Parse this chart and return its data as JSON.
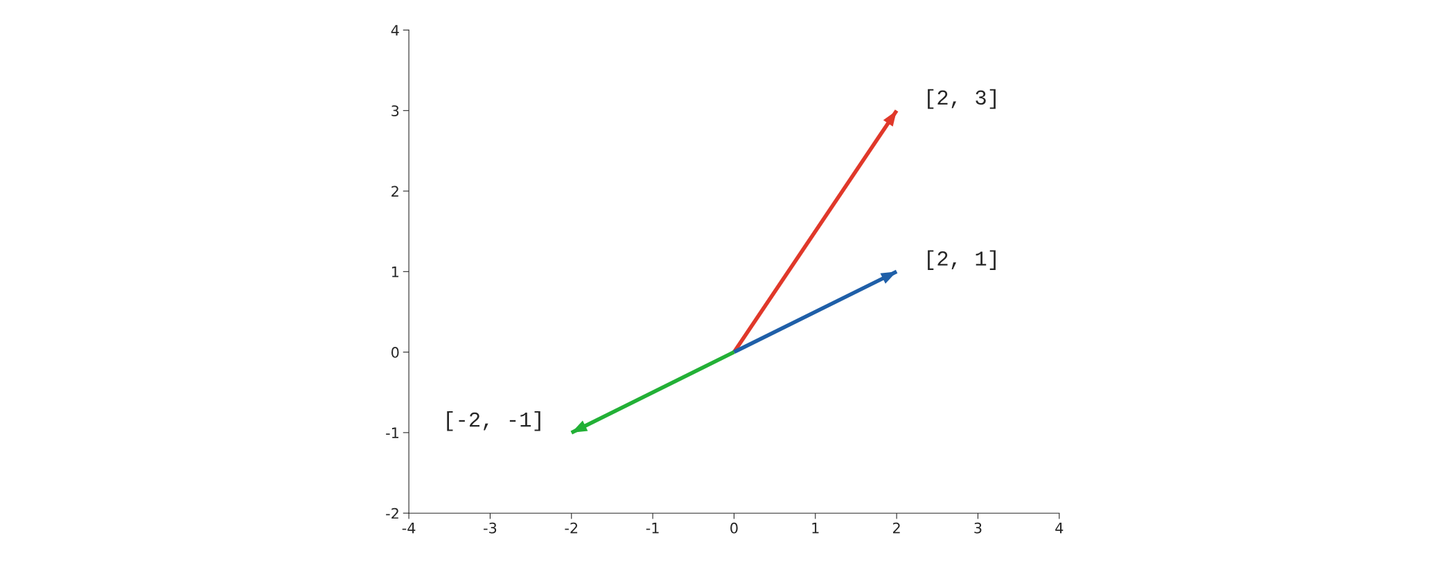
{
  "chart_data": {
    "type": "line",
    "series": [
      {
        "x": [
          0,
          2
        ],
        "values": [
          0,
          3
        ],
        "color": "#e0382a"
      },
      {
        "x": [
          0,
          2
        ],
        "values": [
          0,
          1
        ],
        "color": "#1f5fa8"
      },
      {
        "x": [
          0,
          -2
        ],
        "values": [
          0,
          -1
        ],
        "color": "#22b036"
      }
    ],
    "xlim": [
      -4,
      4
    ],
    "ylim": [
      -2,
      4
    ],
    "xticks": [
      -4,
      -3,
      -2,
      -1,
      0,
      1,
      2,
      3,
      4
    ],
    "yticks": [
      -2,
      -1,
      0,
      1,
      2,
      3,
      4
    ],
    "annotations": [
      "[2, 3]",
      "[2, 1]",
      "[-2, -1]"
    ],
    "grid": false,
    "legend": false,
    "marker": "none",
    "line_style": "solid"
  }
}
